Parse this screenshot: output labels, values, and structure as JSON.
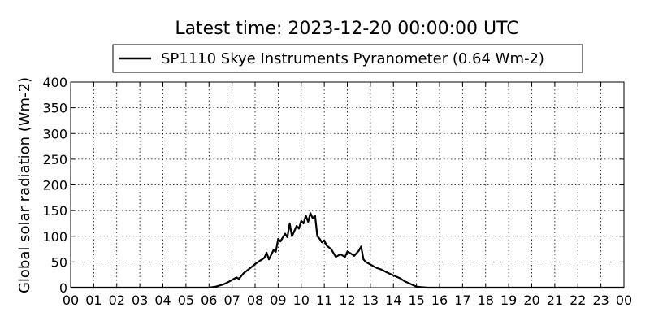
{
  "chart_data": {
    "type": "line",
    "title": "Latest time: 2023-12-20 00:00:00 UTC",
    "xlabel": "",
    "ylabel": "Global solar radiation (Wm-2)",
    "ylim": [
      0,
      400
    ],
    "xlim": [
      0,
      24
    ],
    "grid": true,
    "legend_position": "top-center",
    "x_ticks": [
      "00",
      "01",
      "02",
      "03",
      "04",
      "05",
      "06",
      "07",
      "08",
      "09",
      "10",
      "11",
      "12",
      "13",
      "14",
      "15",
      "16",
      "17",
      "18",
      "19",
      "20",
      "21",
      "22",
      "23",
      "00"
    ],
    "y_ticks": [
      "0",
      "50",
      "100",
      "150",
      "200",
      "250",
      "300",
      "350",
      "400"
    ],
    "series": [
      {
        "name": "SP1110 Skye Instruments Pyranometer (0.64 Wm-2)",
        "color": "#000000",
        "x": [
          0,
          6.0,
          6.3,
          6.6,
          6.8,
          7.0,
          7.2,
          7.3,
          7.5,
          7.7,
          7.9,
          8.0,
          8.2,
          8.4,
          8.5,
          8.6,
          8.8,
          8.9,
          9.0,
          9.1,
          9.3,
          9.4,
          9.5,
          9.6,
          9.8,
          9.9,
          10.0,
          10.1,
          10.2,
          10.3,
          10.4,
          10.5,
          10.6,
          10.7,
          10.8,
          10.9,
          11.0,
          11.1,
          11.3,
          11.5,
          11.7,
          11.9,
          12.0,
          12.1,
          12.3,
          12.5,
          12.6,
          12.7,
          12.8,
          13.0,
          13.2,
          13.3,
          13.5,
          13.7,
          13.9,
          14.1,
          14.3,
          14.5,
          14.7,
          14.9,
          15.0,
          15.2,
          15.5,
          15.8,
          16.0,
          24
        ],
        "y": [
          0,
          0,
          2,
          6,
          10,
          15,
          20,
          17,
          28,
          35,
          42,
          46,
          52,
          58,
          68,
          55,
          73,
          70,
          95,
          90,
          105,
          98,
          125,
          100,
          120,
          115,
          130,
          125,
          140,
          128,
          145,
          135,
          140,
          100,
          95,
          88,
          92,
          82,
          75,
          60,
          65,
          60,
          70,
          68,
          62,
          72,
          80,
          55,
          50,
          45,
          40,
          38,
          35,
          30,
          26,
          22,
          18,
          12,
          8,
          4,
          2,
          1,
          0,
          0,
          0,
          0
        ]
      }
    ]
  }
}
